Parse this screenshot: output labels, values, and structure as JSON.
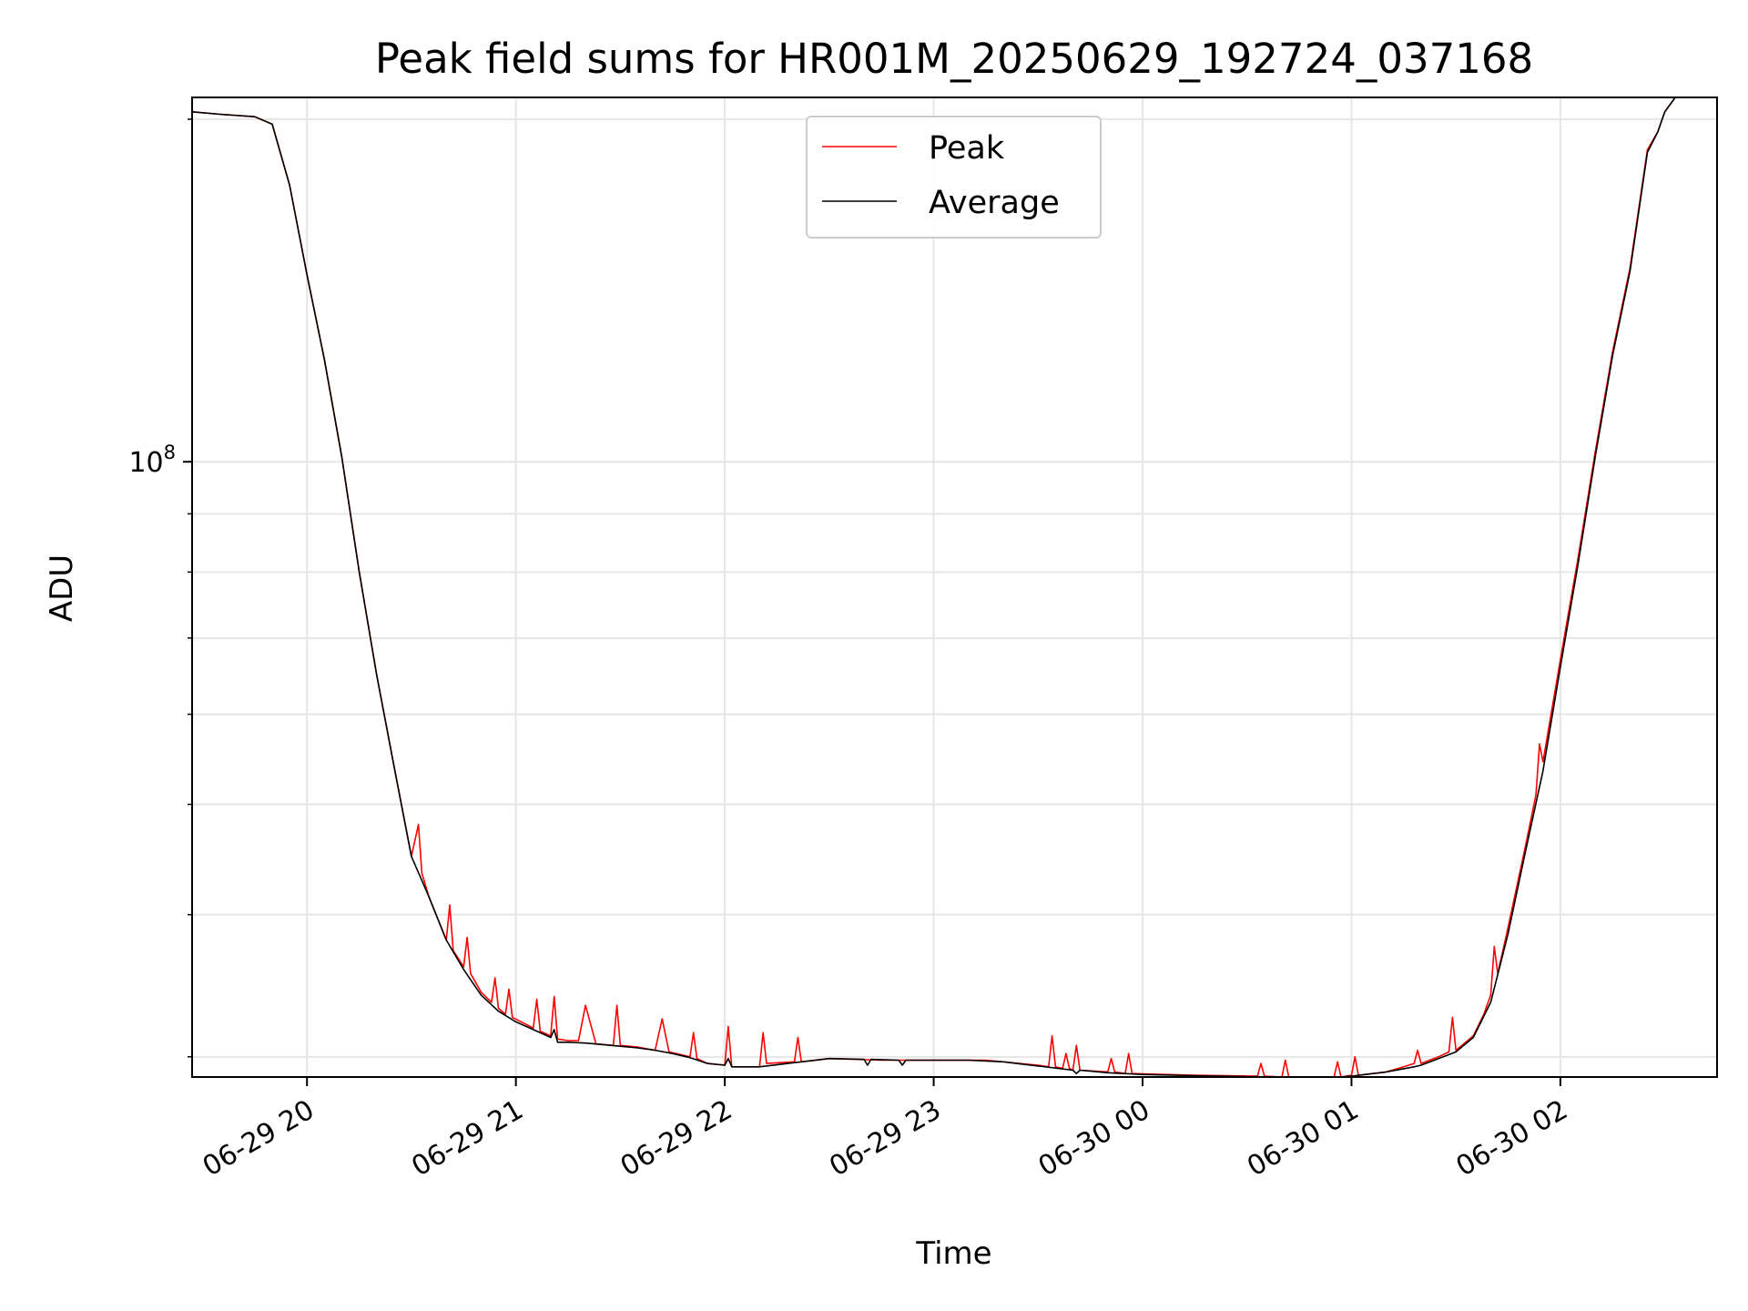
{
  "chart_data": {
    "type": "line",
    "title": "Peak field sums for HR001M_20250629_192724_037168",
    "xlabel": "Time",
    "ylabel": "ADU",
    "y_scale": "log",
    "x_domain": [
      "06-29 19:27",
      "06-30 02:45"
    ],
    "ylim": [
      28800000,
      209000000
    ],
    "x_ticks": [
      {
        "label": "06-29 20",
        "hour": 20
      },
      {
        "label": "06-29 21",
        "hour": 21
      },
      {
        "label": "06-29 22",
        "hour": 22
      },
      {
        "label": "06-29 23",
        "hour": 23
      },
      {
        "label": "06-30 00",
        "hour": 24
      },
      {
        "label": "06-30 01",
        "hour": 25
      },
      {
        "label": "06-30 02",
        "hour": 26
      }
    ],
    "y_major_tick": {
      "value": 100000000,
      "base": "10",
      "exp": "8"
    },
    "y_minor_ticks": [
      30000000,
      40000000,
      50000000,
      60000000,
      70000000,
      80000000,
      90000000,
      200000000
    ],
    "grid": true,
    "legend": {
      "position": "upper center"
    },
    "series": [
      {
        "name": "Peak",
        "color": "#ff0000",
        "points": [
          [
            "06-29 19:27",
            203000000
          ],
          [
            "06-29 19:35",
            202000000
          ],
          [
            "06-29 19:45",
            201000000
          ],
          [
            "06-29 19:50",
            198000000
          ],
          [
            "06-29 19:55",
            175000000
          ],
          [
            "06-29 20:00",
            146000000
          ],
          [
            "06-29 20:05",
            123000000
          ],
          [
            "06-29 20:10",
            101000000
          ],
          [
            "06-29 20:15",
            80000000
          ],
          [
            "06-29 20:20",
            65000000
          ],
          [
            "06-29 20:25",
            54000000
          ],
          [
            "06-29 20:30",
            45000000
          ],
          [
            "06-29 20:32",
            48000000
          ],
          [
            "06-29 20:33",
            43500000
          ],
          [
            "06-29 20:35",
            41500000
          ],
          [
            "06-29 20:40",
            38000000
          ],
          [
            "06-29 20:41",
            40800000
          ],
          [
            "06-29 20:42",
            37200000
          ],
          [
            "06-29 20:45",
            36000000
          ],
          [
            "06-29 20:46",
            38200000
          ],
          [
            "06-29 20:47",
            35500000
          ],
          [
            "06-29 20:50",
            34200000
          ],
          [
            "06-29 20:53",
            33500000
          ],
          [
            "06-29 20:54",
            35200000
          ],
          [
            "06-29 20:55",
            33100000
          ],
          [
            "06-29 20:57",
            32700000
          ],
          [
            "06-29 20:58",
            34400000
          ],
          [
            "06-29 20:59",
            32500000
          ],
          [
            "06-29 21:05",
            31800000
          ],
          [
            "06-29 21:06",
            33700000
          ],
          [
            "06-29 21:07",
            31600000
          ],
          [
            "06-29 21:10",
            31300000
          ],
          [
            "06-29 21:11",
            33900000
          ],
          [
            "06-29 21:12",
            31100000
          ],
          [
            "06-29 21:15",
            31000000
          ],
          [
            "06-29 21:18",
            31000000
          ],
          [
            "06-29 21:20",
            33300000
          ],
          [
            "06-29 21:23",
            30800000
          ],
          [
            "06-29 21:28",
            30700000
          ],
          [
            "06-29 21:29",
            33300000
          ],
          [
            "06-29 21:30",
            30700000
          ],
          [
            "06-29 21:35",
            30600000
          ],
          [
            "06-29 21:40",
            30400000
          ],
          [
            "06-29 21:42",
            32400000
          ],
          [
            "06-29 21:44",
            30300000
          ],
          [
            "06-29 21:50",
            30000000
          ],
          [
            "06-29 21:51",
            31500000
          ],
          [
            "06-29 21:52",
            29900000
          ],
          [
            "06-29 21:55",
            29600000
          ],
          [
            "06-29 22:00",
            29500000
          ],
          [
            "06-29 22:01",
            31900000
          ],
          [
            "06-29 22:02",
            29400000
          ],
          [
            "06-29 22:10",
            29400000
          ],
          [
            "06-29 22:11",
            31500000
          ],
          [
            "06-29 22:12",
            29600000
          ],
          [
            "06-29 22:20",
            29700000
          ],
          [
            "06-29 22:21",
            31200000
          ],
          [
            "06-29 22:22",
            29700000
          ],
          [
            "06-29 22:30",
            29900000
          ],
          [
            "06-29 22:45",
            29800000
          ],
          [
            "06-29 23:00",
            29800000
          ],
          [
            "06-29 23:15",
            29800000
          ],
          [
            "06-29 23:30",
            29500000
          ],
          [
            "06-29 23:33",
            29400000
          ],
          [
            "06-29 23:34",
            31300000
          ],
          [
            "06-29 23:35",
            29400000
          ],
          [
            "06-29 23:37",
            29300000
          ],
          [
            "06-29 23:38",
            30200000
          ],
          [
            "06-29 23:39",
            29300000
          ],
          [
            "06-29 23:40",
            29200000
          ],
          [
            "06-29 23:41",
            30700000
          ],
          [
            "06-29 23:42",
            29200000
          ],
          [
            "06-29 23:50",
            29100000
          ],
          [
            "06-29 23:51",
            29900000
          ],
          [
            "06-29 23:52",
            29100000
          ],
          [
            "06-29 23:55",
            29000000
          ],
          [
            "06-29 23:56",
            30200000
          ],
          [
            "06-29 23:57",
            29000000
          ],
          [
            "06-30 00:15",
            28900000
          ],
          [
            "06-30 00:33",
            28850000
          ],
          [
            "06-30 00:34",
            29600000
          ],
          [
            "06-30 00:35",
            28850000
          ],
          [
            "06-30 00:40",
            28800000
          ],
          [
            "06-30 00:41",
            29800000
          ],
          [
            "06-30 00:42",
            28800000
          ],
          [
            "06-30 00:55",
            28800000
          ],
          [
            "06-30 00:56",
            29700000
          ],
          [
            "06-30 00:57",
            28800000
          ],
          [
            "06-30 01:00",
            28900000
          ],
          [
            "06-30 01:01",
            30000000
          ],
          [
            "06-30 01:02",
            28900000
          ],
          [
            "06-30 01:10",
            29100000
          ],
          [
            "06-30 01:15",
            29400000
          ],
          [
            "06-30 01:18",
            29600000
          ],
          [
            "06-30 01:19",
            30400000
          ],
          [
            "06-30 01:20",
            29600000
          ],
          [
            "06-30 01:25",
            30000000
          ],
          [
            "06-30 01:28",
            30300000
          ],
          [
            "06-30 01:29",
            32500000
          ],
          [
            "06-30 01:30",
            30400000
          ],
          [
            "06-30 01:35",
            31300000
          ],
          [
            "06-30 01:38",
            32700000
          ],
          [
            "06-30 01:40",
            34000000
          ],
          [
            "06-30 01:41",
            37500000
          ],
          [
            "06-30 01:42",
            35500000
          ],
          [
            "06-30 01:45",
            39000000
          ],
          [
            "06-30 01:50",
            46000000
          ],
          [
            "06-30 01:53",
            51000000
          ],
          [
            "06-30 01:54",
            56500000
          ],
          [
            "06-30 01:55",
            54500000
          ],
          [
            "06-30 02:00",
            67000000
          ],
          [
            "06-30 02:05",
            82000000
          ],
          [
            "06-30 02:10",
            102000000
          ],
          [
            "06-30 02:15",
            125000000
          ],
          [
            "06-30 02:20",
            148000000
          ],
          [
            "06-30 02:25",
            188000000
          ],
          [
            "06-30 02:28",
            195000000
          ],
          [
            "06-30 02:30",
            203000000
          ],
          [
            "06-30 02:33",
            209000000
          ]
        ]
      },
      {
        "name": "Average",
        "color": "#000000",
        "points": [
          [
            "06-29 19:27",
            203000000
          ],
          [
            "06-29 19:35",
            202000000
          ],
          [
            "06-29 19:45",
            201000000
          ],
          [
            "06-29 19:50",
            198000000
          ],
          [
            "06-29 19:55",
            175000000
          ],
          [
            "06-29 20:00",
            146000000
          ],
          [
            "06-29 20:05",
            123000000
          ],
          [
            "06-29 20:10",
            101000000
          ],
          [
            "06-29 20:15",
            80000000
          ],
          [
            "06-29 20:20",
            65000000
          ],
          [
            "06-29 20:25",
            54000000
          ],
          [
            "06-29 20:30",
            45000000
          ],
          [
            "06-29 20:35",
            41500000
          ],
          [
            "06-29 20:40",
            38000000
          ],
          [
            "06-29 20:45",
            35800000
          ],
          [
            "06-29 20:50",
            34000000
          ],
          [
            "06-29 20:55",
            32900000
          ],
          [
            "06-29 21:00",
            32200000
          ],
          [
            "06-29 21:05",
            31700000
          ],
          [
            "06-29 21:10",
            31200000
          ],
          [
            "06-29 21:11",
            31700000
          ],
          [
            "06-29 21:12",
            30900000
          ],
          [
            "06-29 21:15",
            30900000
          ],
          [
            "06-29 21:20",
            30850000
          ],
          [
            "06-29 21:25",
            30750000
          ],
          [
            "06-29 21:30",
            30650000
          ],
          [
            "06-29 21:35",
            30550000
          ],
          [
            "06-29 21:40",
            30400000
          ],
          [
            "06-29 21:45",
            30200000
          ],
          [
            "06-29 21:50",
            29950000
          ],
          [
            "06-29 21:55",
            29600000
          ],
          [
            "06-29 22:00",
            29500000
          ],
          [
            "06-29 22:01",
            29900000
          ],
          [
            "06-29 22:02",
            29400000
          ],
          [
            "06-29 22:10",
            29400000
          ],
          [
            "06-29 22:20",
            29650000
          ],
          [
            "06-29 22:30",
            29900000
          ],
          [
            "06-29 22:40",
            29850000
          ],
          [
            "06-29 22:41",
            29500000
          ],
          [
            "06-29 22:42",
            29850000
          ],
          [
            "06-29 22:50",
            29800000
          ],
          [
            "06-29 22:51",
            29500000
          ],
          [
            "06-29 22:52",
            29800000
          ],
          [
            "06-29 23:00",
            29800000
          ],
          [
            "06-29 23:10",
            29800000
          ],
          [
            "06-29 23:20",
            29700000
          ],
          [
            "06-29 23:30",
            29450000
          ],
          [
            "06-29 23:40",
            29200000
          ],
          [
            "06-29 23:41",
            29000000
          ],
          [
            "06-29 23:42",
            29200000
          ],
          [
            "06-29 23:50",
            29050000
          ],
          [
            "06-30 00:00",
            28950000
          ],
          [
            "06-30 00:15",
            28880000
          ],
          [
            "06-30 00:30",
            28820000
          ],
          [
            "06-30 00:31",
            28650000
          ],
          [
            "06-30 00:32",
            28820000
          ],
          [
            "06-30 00:45",
            28780000
          ],
          [
            "06-30 00:46",
            28600000
          ],
          [
            "06-30 00:47",
            28780000
          ],
          [
            "06-30 00:55",
            28780000
          ],
          [
            "06-30 01:00",
            28850000
          ],
          [
            "06-30 01:10",
            29100000
          ],
          [
            "06-30 01:18",
            29400000
          ],
          [
            "06-30 01:20",
            29500000
          ],
          [
            "06-30 01:25",
            29900000
          ],
          [
            "06-30 01:30",
            30300000
          ],
          [
            "06-30 01:35",
            31200000
          ],
          [
            "06-30 01:40",
            33500000
          ],
          [
            "06-30 01:45",
            38500000
          ],
          [
            "06-30 01:50",
            45500000
          ],
          [
            "06-30 01:55",
            53500000
          ],
          [
            "06-30 02:00",
            66000000
          ],
          [
            "06-30 02:05",
            81000000
          ],
          [
            "06-30 02:10",
            101000000
          ],
          [
            "06-30 02:15",
            124000000
          ],
          [
            "06-30 02:20",
            147000000
          ],
          [
            "06-30 02:25",
            187000000
          ],
          [
            "06-30 02:28",
            195000000
          ],
          [
            "06-30 02:30",
            203000000
          ],
          [
            "06-30 02:33",
            209000000
          ]
        ]
      }
    ]
  }
}
